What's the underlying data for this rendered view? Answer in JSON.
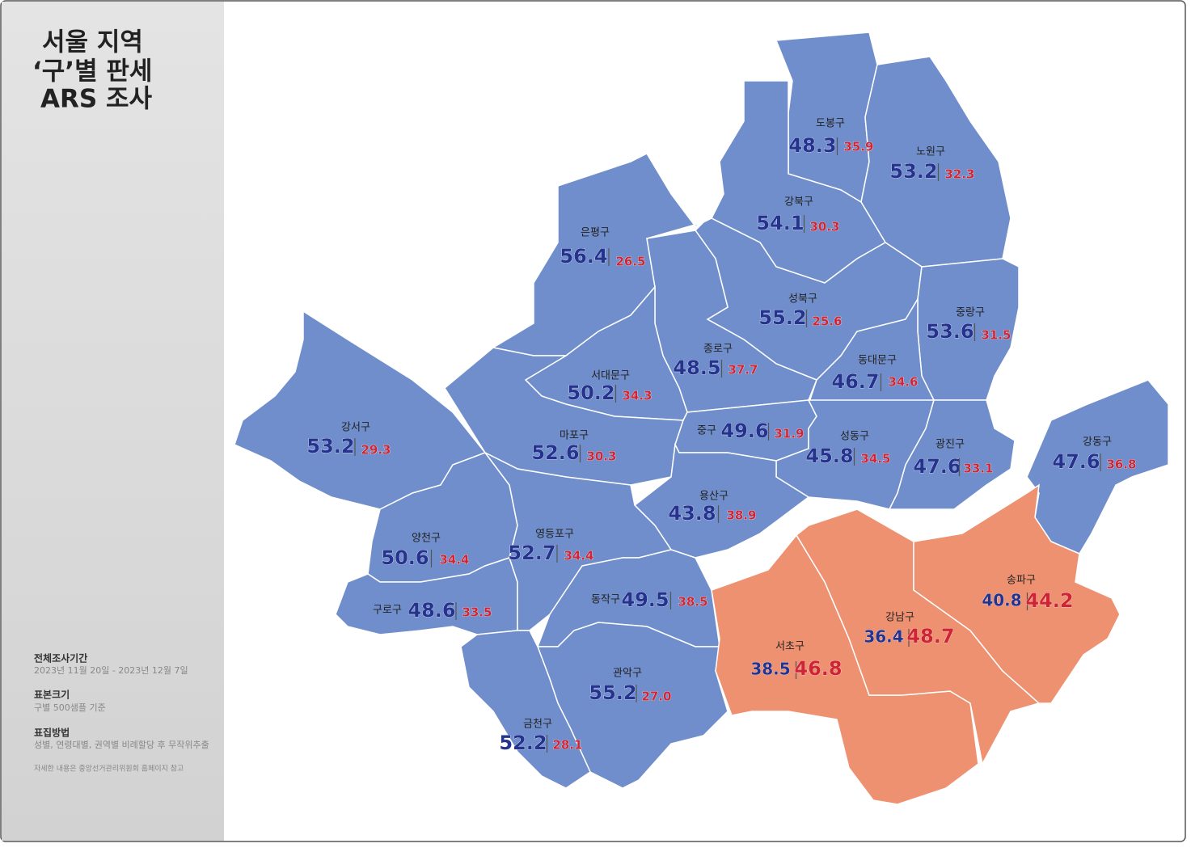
{
  "title": [
    "서울 지역",
    "‘구’별 판세",
    "ARS 조사"
  ],
  "notes": [
    {
      "heading": "전체조사기간",
      "text": "2023년 11월 20일 - 2023년 12월 7일"
    },
    {
      "heading": "표본크기",
      "text": "구별 500샘플 기준"
    },
    {
      "heading": "표집방법",
      "text": "성별, 연령대별, 권역별 비례할당 후 무작위추출"
    }
  ],
  "footnote": "자세한 내용은 중앙선거관리위원회 홈페이지 참고",
  "colors": {
    "blue": "#6f8ecb",
    "red": "#ee9171",
    "blue_text": "#25338f",
    "red_text": "#cf2434"
  },
  "districts": [
    {
      "name": "도봉구",
      "values": [
        48.3,
        35.9
      ]
    },
    {
      "name": "노원구",
      "values": [
        53.2,
        32.3
      ]
    },
    {
      "name": "강북구",
      "values": [
        54.1,
        30.3
      ]
    },
    {
      "name": "은평구",
      "values": [
        56.4,
        26.5
      ]
    },
    {
      "name": "성북구",
      "values": [
        55.2,
        25.6
      ]
    },
    {
      "name": "종로구",
      "values": [
        48.5,
        37.7
      ]
    },
    {
      "name": "중랑구",
      "values": [
        53.6,
        31.5
      ]
    },
    {
      "name": "동대문구",
      "values": [
        46.7,
        34.6
      ]
    },
    {
      "name": "서대문구",
      "values": [
        50.2,
        34.3
      ]
    },
    {
      "name": "마포구",
      "values": [
        52.6,
        30.3
      ]
    },
    {
      "name": "중구",
      "values": [
        49.6,
        31.9
      ]
    },
    {
      "name": "성동구",
      "values": [
        45.8,
        34.5
      ]
    },
    {
      "name": "광진구",
      "values": [
        47.6,
        33.1
      ]
    },
    {
      "name": "용산구",
      "values": [
        43.8,
        38.9
      ]
    },
    {
      "name": "강동구",
      "values": [
        47.6,
        36.8
      ]
    },
    {
      "name": "강서구",
      "values": [
        53.2,
        29.3
      ]
    },
    {
      "name": "양천구",
      "values": [
        50.6,
        34.4
      ]
    },
    {
      "name": "구로구",
      "values": [
        48.6,
        33.5
      ]
    },
    {
      "name": "영등포구",
      "values": [
        52.7,
        34.4
      ]
    },
    {
      "name": "동작구",
      "values": [
        49.5,
        38.5
      ]
    },
    {
      "name": "관악구",
      "values": [
        55.2,
        27.0
      ],
      "value_labels": [
        "55.2",
        "27.0"
      ]
    },
    {
      "name": "금천구",
      "values": [
        52.2,
        28.1
      ]
    },
    {
      "name": "서초구",
      "values": [
        38.5,
        46.8
      ]
    },
    {
      "name": "강남구",
      "values": [
        36.4,
        48.7
      ]
    },
    {
      "name": "송파구",
      "values": [
        40.8,
        44.2
      ]
    }
  ]
}
